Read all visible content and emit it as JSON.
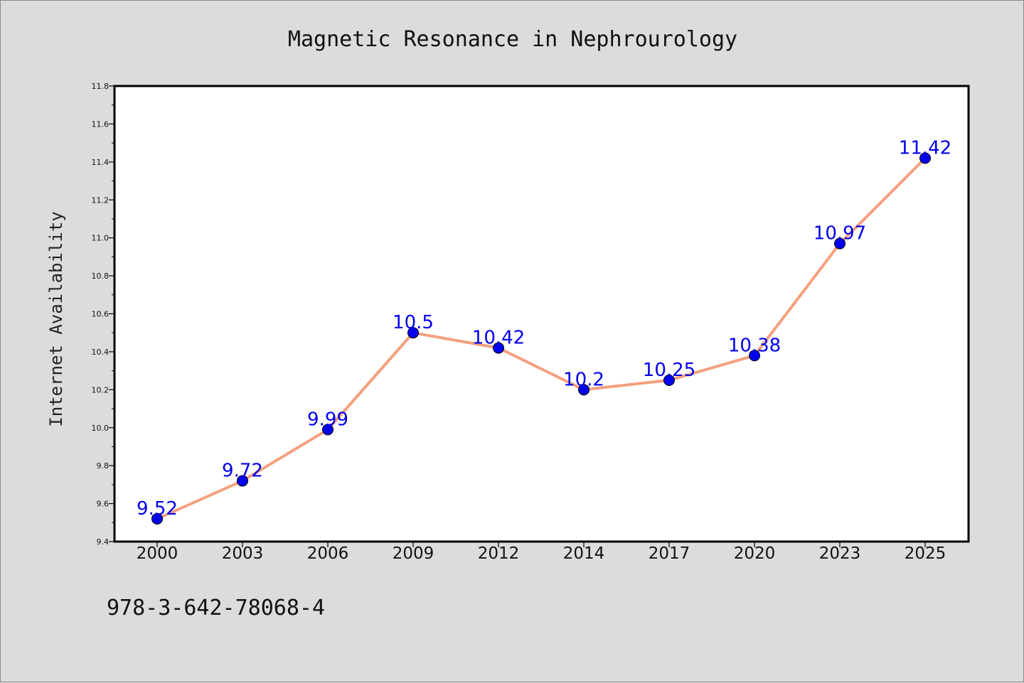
{
  "chart_data": {
    "type": "line",
    "title": "Magnetic Resonance in Nephrourology",
    "xlabel": "",
    "ylabel": "Internet Availability",
    "categories": [
      "2000",
      "2003",
      "2006",
      "2009",
      "2012",
      "2014",
      "2017",
      "2020",
      "2023",
      "2025"
    ],
    "series": [
      {
        "values": [
          9.52,
          9.72,
          9.99,
          10.5,
          10.42,
          10.2,
          10.25,
          10.38,
          10.97,
          11.42
        ],
        "data_labels": [
          "9.52",
          "9.72",
          "9.99",
          "10.5",
          "10.42",
          "10.2",
          "10.25",
          "10.38",
          "10.97",
          "11.42"
        ],
        "line_color": "#f4a07e",
        "marker_color": "#0000ee",
        "label_color": "#0000ee"
      }
    ],
    "ylim": [
      9.4,
      11.8
    ],
    "yticks": [
      "9.4",
      "9.6",
      "9.8",
      "10.0",
      "10.2",
      "10.4",
      "10.6",
      "10.8",
      "11.0",
      "11.2",
      "11.4",
      "11.6",
      "11.8"
    ],
    "grid": false,
    "legend": "none"
  },
  "footer": {
    "isbn": "978-3-642-78068-4"
  },
  "colors": {
    "page_bg": "#dcdcdc",
    "plot_bg": "#ffffff",
    "axis": "#000000"
  }
}
